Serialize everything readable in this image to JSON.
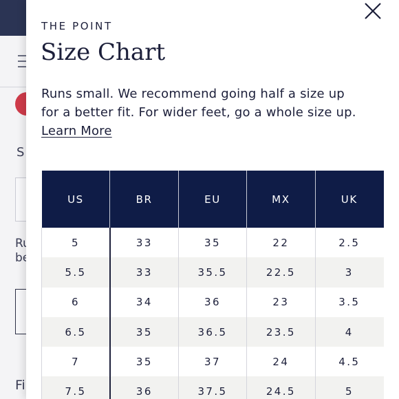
{
  "background": {
    "text_fragments": [
      "S",
      "Ru",
      "be",
      "Fi"
    ]
  },
  "panel": {
    "eyebrow": "THE POINT",
    "title": "Size Chart",
    "description": "Runs small. We recommend going half a size up for a better fit. For wider feet, go a whole size up.",
    "learn_more_label": "Learn More",
    "close_icon": "close-icon"
  },
  "size_table": {
    "headers": [
      "US",
      "BR",
      "EU",
      "MX",
      "UK"
    ],
    "rows": [
      [
        "5",
        "33",
        "35",
        "22",
        "2.5"
      ],
      [
        "5.5",
        "33",
        "35.5",
        "22.5",
        "3"
      ],
      [
        "6",
        "34",
        "36",
        "23",
        "3.5"
      ],
      [
        "6.5",
        "35",
        "36.5",
        "23.5",
        "4"
      ],
      [
        "7",
        "35",
        "37",
        "24",
        "4.5"
      ],
      [
        "7.5",
        "36",
        "37.5",
        "24.5",
        "5"
      ]
    ]
  },
  "colors": {
    "header_bg": "#0f1c47",
    "text": "#1c1f3a",
    "alt_row": "#f2f2f0"
  }
}
